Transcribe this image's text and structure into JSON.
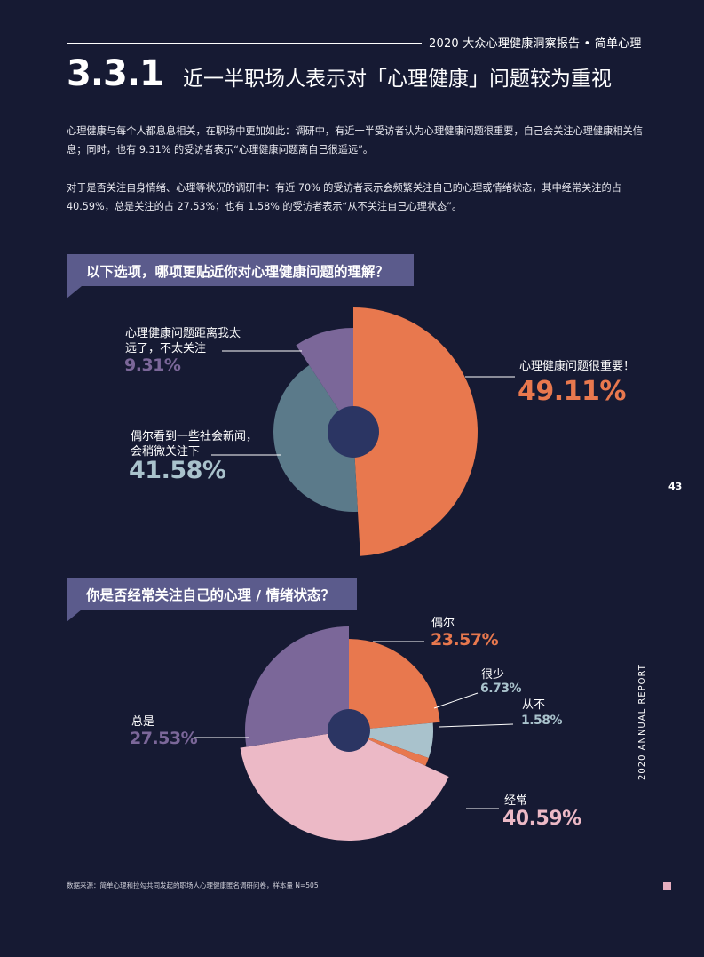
{
  "header": {
    "brand_text": "2020 大众心理健康洞察报告 • 简单心理"
  },
  "section": {
    "number": "3.3.1",
    "title": "近一半职场人表示对「心理健康」问题较为重视"
  },
  "paragraphs": [
    "心理健康与每个人都息息相关，在职场中更加如此：调研中，有近一半受访者认为心理健康问题很重要，自己会关注心理健康相关信息；同时，也有 9.31% 的受访者表示“心理健康问题离自己很遥远”。",
    "对于是否关注自身情绪、心理等状况的调研中：有近 70% 的受访者表示会频繁关注自己的心理或情绪状态，其中经常关注的占 40.59%，总是关注的占 27.53%；也有 1.58% 的受访者表示“从不关注自己心理状态”。"
  ],
  "colors": {
    "background": "#161a33",
    "orange": "#e8784e",
    "slate": "#5b7a8a",
    "purple": "#7b6799",
    "lightblue": "#a9c2cc",
    "pink": "#ecb9c6",
    "navy": "#2b3563",
    "question_bar": "#5b5b8c"
  },
  "chart_data": [
    {
      "type": "pie",
      "title": "以下选项，哪项更贴近你对心理健康问题的理解？",
      "slices": [
        {
          "label": "心理健康问题很重要！",
          "value": 49.11,
          "display": "49.11%",
          "color": "#e8784e"
        },
        {
          "label": "偶尔看到一些社会新闻，会稍微关注下",
          "value": 41.58,
          "display": "41.58%",
          "color": "#5b7a8a"
        },
        {
          "label": "心理健康问题距离我太远了，不太关注",
          "value": 9.31,
          "display": "9.31%",
          "color": "#7b6799"
        }
      ]
    },
    {
      "type": "pie",
      "title": "你是否经常关注自己的心理 / 情绪状态？",
      "slices": [
        {
          "label": "偶尔",
          "value": 23.57,
          "display": "23.57%",
          "color": "#e8784e"
        },
        {
          "label": "很少",
          "value": 6.73,
          "display": "6.73%",
          "color": "#a9c2cc"
        },
        {
          "label": "从不",
          "value": 1.58,
          "display": "1.58%",
          "color": "#e8784e"
        },
        {
          "label": "经常",
          "value": 40.59,
          "display": "40.59%",
          "color": "#ecb9c6"
        },
        {
          "label": "总是",
          "value": 27.53,
          "display": "27.53%",
          "color": "#7b6799"
        }
      ]
    }
  ],
  "labels": {
    "c1_s1_line1": "心理健康问题很重要！",
    "c1_s2_line1": "偶尔看到一些社会新闻，",
    "c1_s2_line2": "会稍微关注下",
    "c1_s3_line1": "心理健康问题距离我太",
    "c1_s3_line2": "远了，不太关注"
  },
  "page_number": "43",
  "side_label": "2020 ANNUAL REPORT",
  "footer": "数据来源：简单心理和拉勾共同发起的职场人心理健康匿名调研问卷，样本量 N=505"
}
